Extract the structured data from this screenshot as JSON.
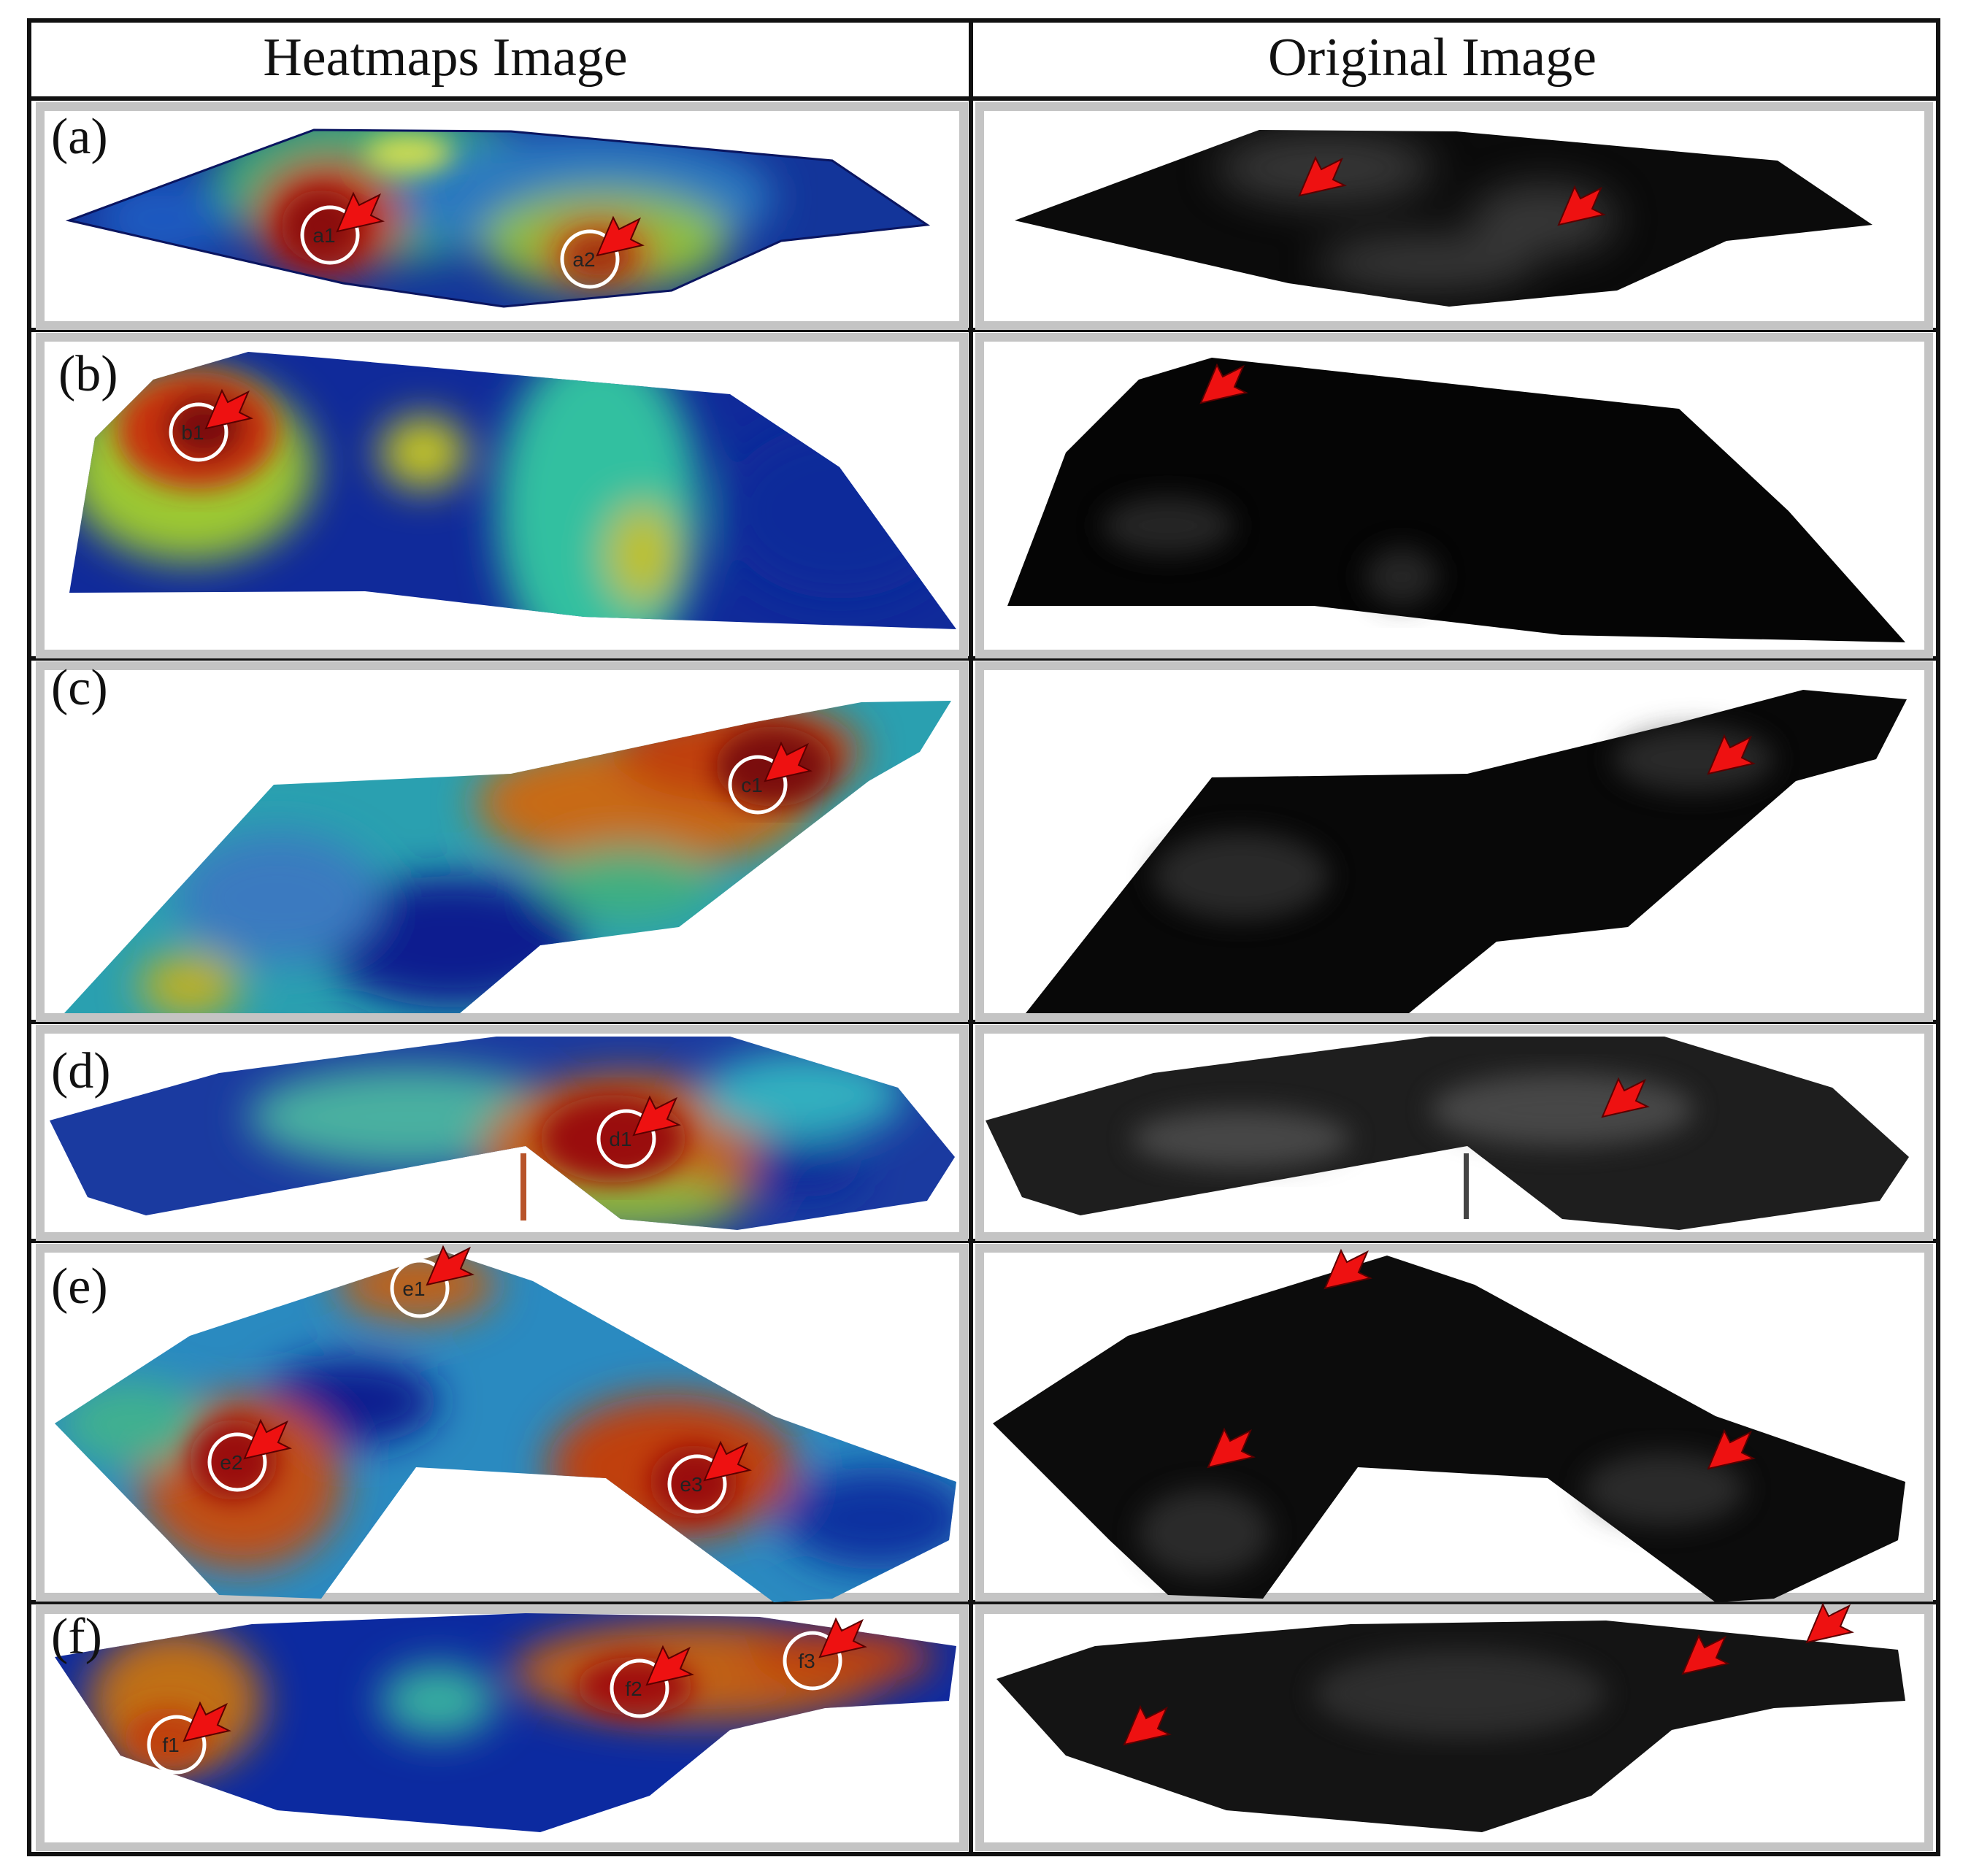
{
  "headers": {
    "heatmap": "Heatmaps Image",
    "original": "Original Image"
  },
  "colors": {
    "arrow": "#ee1111",
    "marker_ring": "#ffffff",
    "heat_low": "#0a1f8f",
    "heat_mid": "#22b8a8",
    "heat_high": "#b01010",
    "tissue_dark": "#0b0b0b"
  },
  "rows": [
    {
      "label": "(a)",
      "markers": [
        "a1",
        "a2"
      ]
    },
    {
      "label": "(b)",
      "markers": [
        "b1"
      ]
    },
    {
      "label": "(c)",
      "markers": [
        "c1"
      ]
    },
    {
      "label": "(d)",
      "markers": [
        "d1"
      ]
    },
    {
      "label": "(e)",
      "markers": [
        "e1",
        "e2",
        "e3"
      ]
    },
    {
      "label": "(f)",
      "markers": [
        "f1",
        "f2",
        "f3"
      ]
    }
  ]
}
